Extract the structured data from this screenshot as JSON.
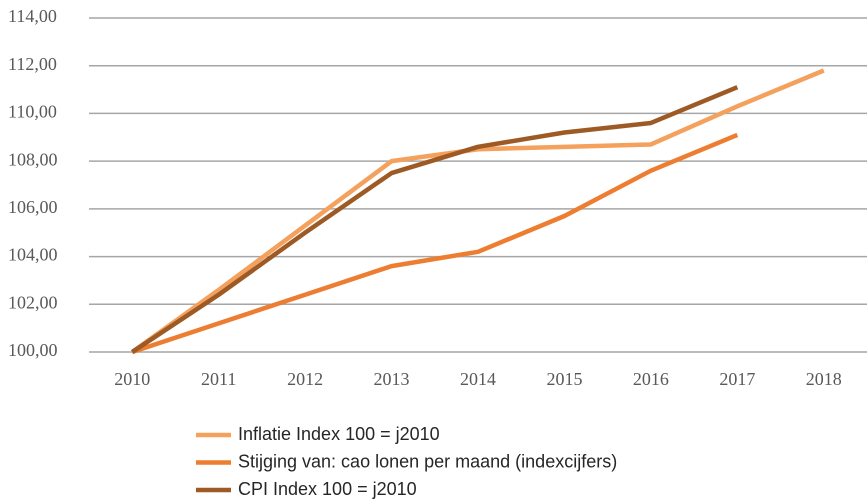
{
  "chart_data": {
    "type": "line",
    "categories": [
      "2010",
      "2011",
      "2012",
      "2013",
      "2014",
      "2015",
      "2016",
      "2017",
      "2018"
    ],
    "series": [
      {
        "name": "Inflatie Index 100 = j2010",
        "color": "#f4a15d",
        "values": [
          100,
          102.6,
          105.3,
          108.0,
          108.5,
          108.6,
          108.7,
          110.3,
          111.8
        ]
      },
      {
        "name": "Stijging van: cao lonen per maand (indexcijfers)",
        "color": "#ed7d31",
        "values": [
          100,
          101.2,
          102.4,
          103.6,
          104.2,
          105.7,
          107.6,
          109.1,
          null
        ]
      },
      {
        "name": "CPI Index 100 = j2010",
        "color": "#9e5a24",
        "values": [
          100,
          102.4,
          105.0,
          107.5,
          108.6,
          109.2,
          109.6,
          111.1,
          null
        ]
      }
    ],
    "ylim": [
      100,
      114
    ],
    "yticks": [
      {
        "value": 100,
        "label": "100,00"
      },
      {
        "value": 102,
        "label": "102,00"
      },
      {
        "value": 104,
        "label": "104,00"
      },
      {
        "value": 106,
        "label": "106,00"
      },
      {
        "value": 108,
        "label": "108,00"
      },
      {
        "value": 110,
        "label": "110,00"
      },
      {
        "value": 112,
        "label": "112,00"
      },
      {
        "value": 114,
        "label": "114,00"
      }
    ],
    "grid": true,
    "legend": "bottom"
  }
}
